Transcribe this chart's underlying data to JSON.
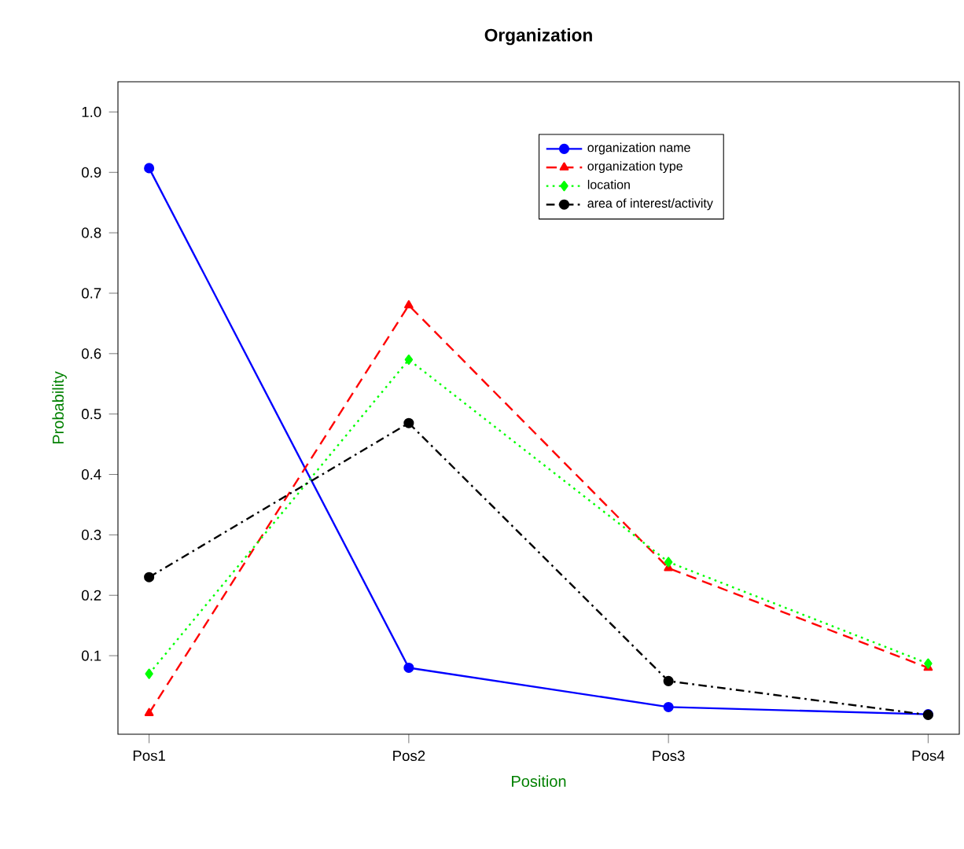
{
  "chart_data": {
    "type": "line",
    "title": "Organization",
    "xlabel": "Position",
    "ylabel": "Probability",
    "categories": [
      "Pos1",
      "Pos2",
      "Pos3",
      "Pos4"
    ],
    "series": [
      {
        "name": "organization name",
        "color": "#0000ff",
        "marker": "circle",
        "line_style": "solid",
        "values": [
          0.907,
          0.08,
          0.015,
          0.003
        ]
      },
      {
        "name": "organization type",
        "color": "#ff0000",
        "marker": "triangle",
        "line_style": "dashed",
        "values": [
          0.005,
          0.68,
          0.245,
          0.08
        ]
      },
      {
        "name": "location",
        "color": "#00ff00",
        "marker": "diamond",
        "line_style": "dotted",
        "values": [
          0.07,
          0.59,
          0.255,
          0.087
        ]
      },
      {
        "name": "area of interest/activity",
        "color": "#000000",
        "marker": "circle",
        "line_style": "dashdot",
        "values": [
          0.23,
          0.485,
          0.058,
          0.002
        ]
      }
    ],
    "ylim": [
      -0.03,
      1.05
    ],
    "yticks": [
      0.1,
      0.2,
      0.3,
      0.4,
      0.5,
      0.6,
      0.7,
      0.8,
      0.9,
      {
        "value": 1.0,
        "label": "1.0"
      }
    ],
    "legend": "top right",
    "grid": false
  }
}
